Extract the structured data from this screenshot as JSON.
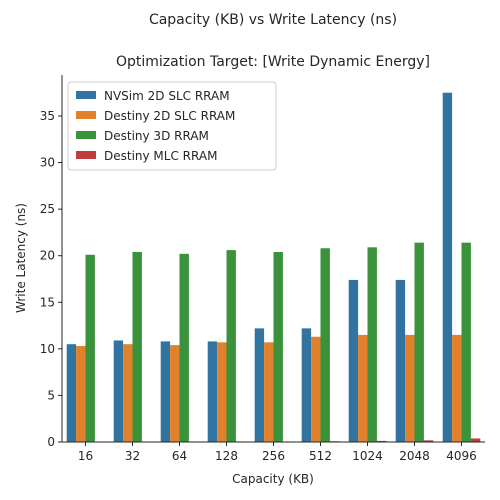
{
  "chart_data": {
    "type": "bar",
    "suptitle": "Capacity (KB) vs Write Latency (ns)",
    "title": "Optimization Target: [Write Dynamic Energy]",
    "xlabel": "Capacity (KB)",
    "ylabel": "Write Latency (ns)",
    "categories": [
      "16",
      "32",
      "64",
      "128",
      "256",
      "512",
      "1024",
      "2048",
      "4096"
    ],
    "ylim": [
      0,
      39.4
    ],
    "yticks": [
      0,
      5,
      10,
      15,
      20,
      25,
      30,
      35
    ],
    "legend_position": "top-left",
    "grid": false,
    "series": [
      {
        "name": "NVSim 2D SLC RRAM",
        "color": "#3274a1",
        "values": [
          10.5,
          10.9,
          10.8,
          10.8,
          12.2,
          12.2,
          17.4,
          17.4,
          37.5
        ]
      },
      {
        "name": "Destiny 2D SLC RRAM",
        "color": "#e1812c",
        "values": [
          10.3,
          10.5,
          10.4,
          10.7,
          10.7,
          11.3,
          11.5,
          11.5,
          11.5
        ]
      },
      {
        "name": "Destiny 3D RRAM",
        "color": "#3a923a",
        "values": [
          20.1,
          20.4,
          20.2,
          20.6,
          20.4,
          20.8,
          20.9,
          21.4,
          21.4
        ]
      },
      {
        "name": "Destiny MLC RRAM",
        "color": "#c03d3e",
        "values": [
          0.02,
          0.05,
          0.06,
          0.06,
          0.06,
          0.08,
          0.12,
          0.18,
          0.38
        ]
      }
    ]
  }
}
